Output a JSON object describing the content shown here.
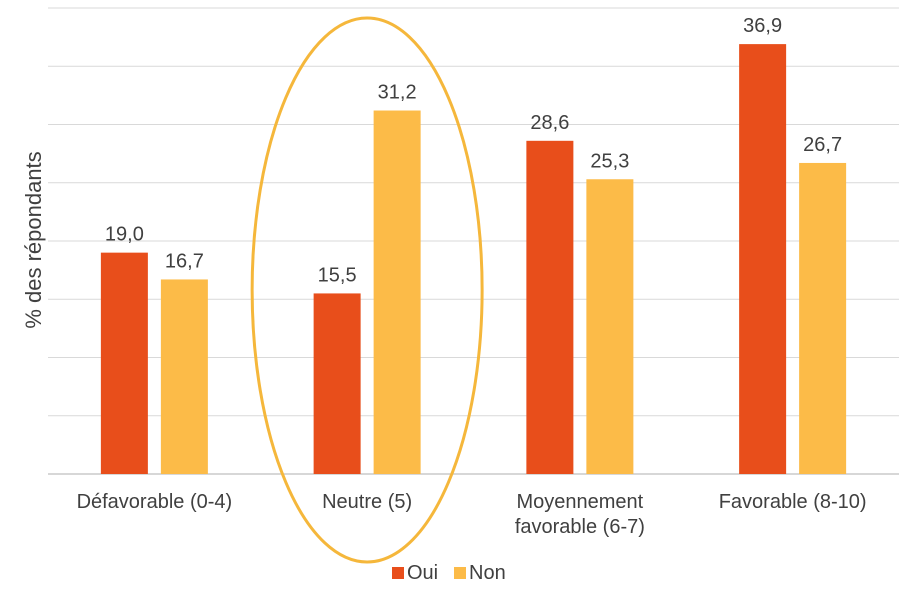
{
  "chart_data": {
    "type": "bar",
    "categories": [
      [
        "Défavorable (0-4)"
      ],
      [
        "Neutre (5)"
      ],
      [
        "Moyennement",
        "favorable (6-7)"
      ],
      [
        "Favorable (8-10)"
      ]
    ],
    "series": [
      {
        "name": "Oui",
        "color": "#E84E1B",
        "values": [
          19.0,
          15.5,
          28.6,
          36.9
        ]
      },
      {
        "name": "Non",
        "color": "#FCBB48",
        "values": [
          16.7,
          31.2,
          25.3,
          26.7
        ]
      }
    ],
    "value_labels": [
      [
        "19,0",
        "15,5",
        "28,6",
        "36,9"
      ],
      [
        "16,7",
        "31,2",
        "25,3",
        "26,7"
      ]
    ],
    "ylabel": "% des répondants",
    "ylim": [
      0,
      40
    ],
    "y_gridline_step": 5,
    "y_tick_labels_shown": false,
    "grid": true,
    "legend_position": "bottom",
    "highlight": {
      "shape": "ellipse",
      "category_index": 1,
      "color": "#F5B73B"
    }
  }
}
